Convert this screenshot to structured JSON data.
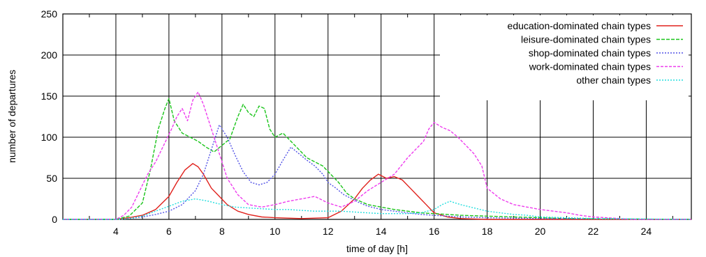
{
  "chart_data": {
    "type": "line",
    "title": "",
    "xlabel": "time of day [h]",
    "ylabel": "number of departures",
    "xlim": [
      2,
      25.7
    ],
    "ylim": [
      0,
      250
    ],
    "xticks": [
      4,
      6,
      8,
      10,
      12,
      14,
      16,
      18,
      20,
      22,
      24
    ],
    "yticks": [
      0,
      50,
      100,
      150,
      200,
      250
    ],
    "grid": true,
    "legend_position": "top-right",
    "series": [
      {
        "name": "education-dominated chain types",
        "color": "#e0201b",
        "dash": "none",
        "x": [
          2,
          4,
          4.5,
          5,
          5.5,
          6,
          6.3,
          6.6,
          6.9,
          7.1,
          7.3,
          7.6,
          7.9,
          8.2,
          8.6,
          9,
          9.5,
          10,
          11,
          12,
          12.5,
          13,
          13.3,
          13.6,
          13.9,
          14.2,
          14.5,
          14.8,
          15.1,
          15.4,
          15.7,
          16,
          16.5,
          17,
          18,
          20,
          25.7
        ],
        "y": [
          0,
          0,
          2,
          5,
          12,
          28,
          45,
          60,
          68,
          64,
          55,
          38,
          28,
          18,
          10,
          6,
          3,
          2,
          1,
          2,
          10,
          25,
          38,
          48,
          55,
          50,
          52,
          48,
          38,
          28,
          18,
          8,
          3,
          1,
          0,
          0,
          0
        ]
      },
      {
        "name": "leisure-dominated chain types",
        "color": "#19c419",
        "dash": "5 2",
        "x": [
          2,
          4,
          4.5,
          5,
          5.3,
          5.6,
          5.85,
          6,
          6.2,
          6.5,
          6.8,
          7.1,
          7.4,
          7.7,
          8,
          8.3,
          8.6,
          8.8,
          9,
          9.2,
          9.4,
          9.6,
          9.8,
          10,
          10.3,
          10.6,
          10.9,
          11.2,
          11.5,
          11.8,
          12.1,
          12.4,
          12.7,
          13,
          13.5,
          14,
          14.5,
          15,
          15.5,
          16,
          17,
          18,
          19,
          20,
          21,
          25.7
        ],
        "y": [
          0,
          0,
          4,
          20,
          60,
          110,
          135,
          147,
          120,
          105,
          100,
          95,
          88,
          82,
          90,
          98,
          125,
          140,
          130,
          125,
          138,
          135,
          110,
          100,
          105,
          95,
          85,
          75,
          70,
          65,
          55,
          45,
          32,
          25,
          18,
          15,
          12,
          10,
          8,
          7,
          5,
          4,
          3,
          2,
          1,
          0
        ]
      },
      {
        "name": "shop-dominated chain types",
        "color": "#5050e6",
        "dash": "2 2",
        "x": [
          2,
          4,
          4.5,
          5,
          5.5,
          6,
          6.5,
          7,
          7.3,
          7.6,
          7.9,
          8.2,
          8.5,
          8.8,
          9.1,
          9.4,
          9.7,
          10,
          10.3,
          10.6,
          10.9,
          11.2,
          11.5,
          11.8,
          12,
          12.3,
          12.6,
          12.9,
          13.2,
          13.5,
          14,
          14.5,
          15,
          15.5,
          16,
          17,
          18,
          20,
          25.7
        ],
        "y": [
          0,
          0,
          1,
          3,
          6,
          10,
          18,
          35,
          55,
          85,
          115,
          100,
          78,
          58,
          45,
          42,
          45,
          55,
          72,
          88,
          80,
          72,
          65,
          55,
          45,
          38,
          30,
          25,
          20,
          16,
          12,
          10,
          8,
          6,
          5,
          3,
          2,
          1,
          0
        ]
      },
      {
        "name": "work-dominated chain types",
        "color": "#ee3cee",
        "dash": "4 2",
        "x": [
          2,
          4,
          4.3,
          4.6,
          4.9,
          5.2,
          5.5,
          5.8,
          6.1,
          6.3,
          6.5,
          6.7,
          6.9,
          7.1,
          7.3,
          7.6,
          7.9,
          8.2,
          8.6,
          9,
          9.5,
          10,
          10.5,
          11,
          11.5,
          12,
          12.5,
          13,
          13.5,
          14,
          14.5,
          15,
          15.3,
          15.6,
          15.8,
          16,
          16.3,
          16.6,
          16.9,
          17.2,
          17.5,
          17.8,
          18,
          18.5,
          19,
          19.5,
          20,
          20.5,
          21,
          21.5,
          22,
          22.5,
          23,
          23.5,
          25.7
        ],
        "y": [
          0,
          0,
          5,
          15,
          35,
          55,
          70,
          90,
          110,
          125,
          135,
          120,
          145,
          155,
          140,
          110,
          80,
          50,
          30,
          18,
          15,
          18,
          22,
          25,
          28,
          20,
          15,
          22,
          35,
          45,
          55,
          75,
          85,
          95,
          110,
          118,
          112,
          108,
          100,
          90,
          80,
          65,
          38,
          25,
          18,
          15,
          12,
          10,
          8,
          5,
          3,
          2,
          1,
          0,
          0
        ]
      },
      {
        "name": "other chain types",
        "color": "#22dede",
        "dash": "2 2",
        "x": [
          2,
          4,
          4.5,
          5,
          5.5,
          6,
          6.5,
          7,
          7.5,
          8,
          8.5,
          9,
          9.5,
          10,
          10.5,
          11,
          11.5,
          12,
          12.5,
          13,
          13.5,
          14,
          14.5,
          15,
          15.5,
          16,
          16.3,
          16.6,
          17,
          17.5,
          18,
          18.5,
          19,
          19.5,
          20,
          21,
          22,
          25.7
        ],
        "y": [
          0,
          0,
          1,
          4,
          10,
          16,
          22,
          25,
          22,
          18,
          15,
          14,
          13,
          12,
          12,
          11,
          10,
          10,
          10,
          9,
          8,
          7,
          7,
          7,
          8,
          12,
          18,
          22,
          18,
          14,
          10,
          8,
          6,
          5,
          3,
          2,
          1,
          0
        ]
      }
    ]
  }
}
